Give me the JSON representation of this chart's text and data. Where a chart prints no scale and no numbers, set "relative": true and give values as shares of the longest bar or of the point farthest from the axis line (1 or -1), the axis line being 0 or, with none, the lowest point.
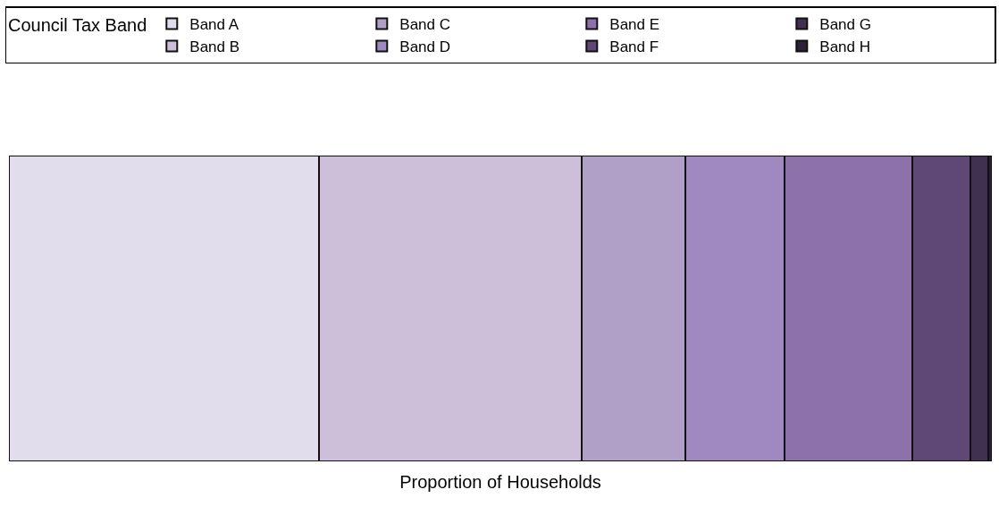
{
  "chart_data": {
    "type": "bar",
    "orientation": "horizontal",
    "stacked": true,
    "relative": true,
    "categories": [
      null
    ],
    "xlabel": "Proportion of Households",
    "legend_title": "Council Tax Band",
    "legend": "top",
    "series": [
      {
        "name": "Band A",
        "color": "#e1dded",
        "values": [
          0.315
        ]
      },
      {
        "name": "Band B",
        "color": "#cdbfd9",
        "values": [
          0.268
        ]
      },
      {
        "name": "Band C",
        "color": "#b0a0c8",
        "values": [
          0.105
        ]
      },
      {
        "name": "Band D",
        "color": "#a088c0",
        "values": [
          0.101
        ]
      },
      {
        "name": "Band E",
        "color": "#8c71ab",
        "values": [
          0.13
        ]
      },
      {
        "name": "Band F",
        "color": "#5f4776",
        "values": [
          0.059
        ]
      },
      {
        "name": "Band G",
        "color": "#403150",
        "values": [
          0.018
        ]
      },
      {
        "name": "Band H",
        "color": "#2c2238",
        "values": [
          0.004
        ]
      }
    ]
  }
}
